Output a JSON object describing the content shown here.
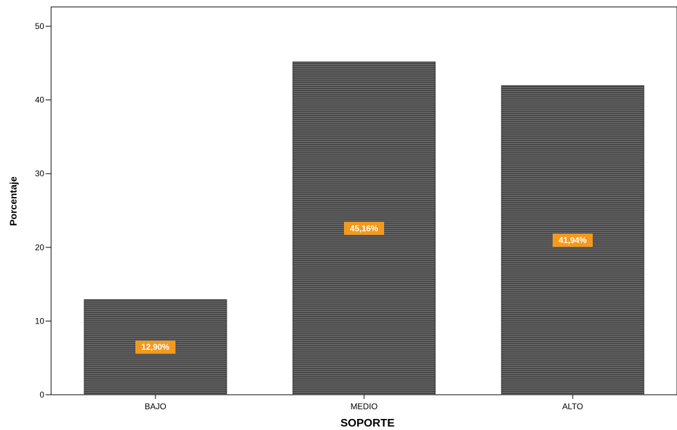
{
  "chart_data": {
    "type": "bar",
    "categories": [
      "BAJO",
      "MEDIO",
      "ALTO"
    ],
    "values": [
      12.9,
      45.16,
      41.94
    ],
    "data_labels": [
      "12,90%",
      "45,16%",
      "41,94%"
    ],
    "xlabel": "SOPORTE",
    "ylabel": "Porcentaje",
    "ylim": [
      0,
      50
    ],
    "yticks": [
      0,
      10,
      20,
      30,
      40,
      50
    ],
    "grid": false,
    "legend": "none",
    "colors": {
      "bar_fill": "#4a4a4a",
      "bar_stripe": "#6e6e6e",
      "label_bg": "#f39a1e",
      "label_text": "#ffffff",
      "axis": "#000000"
    }
  }
}
